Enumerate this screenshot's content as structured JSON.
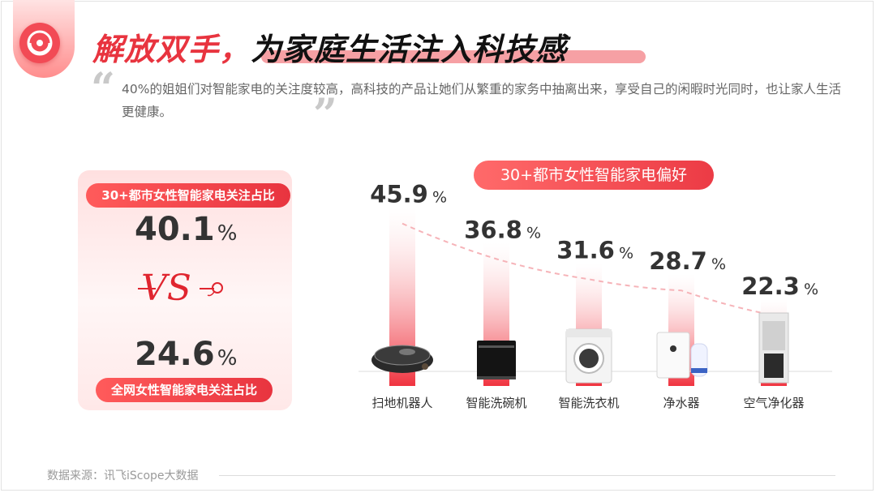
{
  "title": {
    "part1": "解放双手，",
    "part2": "为家庭生活注入科技感"
  },
  "quote": {
    "text": "40%的姐姐们对智能家电的关注度较高，高科技的产品让她们从繁重的家务中抽离出来，享受自己的闲暇时光同时，也让家人生活更健康。"
  },
  "comparison": {
    "top_label": "30+都市女性智能家电关注占比",
    "top_value": "40.1",
    "vs_text": "VS",
    "bottom_value": "24.6",
    "bottom_label": "全网女性智能家电关注占比",
    "percent_sign": "%"
  },
  "chart_title": "30+都市女性智能家电偏好",
  "chart_data": {
    "type": "bar",
    "title": "30+都市女性智能家电偏好",
    "categories": [
      "扫地机器人",
      "智能洗碗机",
      "智能洗衣机",
      "净水器",
      "空气净化器"
    ],
    "values": [
      45.9,
      36.8,
      31.6,
      28.7,
      22.3
    ],
    "unit": "%",
    "trend_line": "dashed",
    "colors": {
      "bar_top": "#ffffff",
      "bar_bottom": "#f0333f",
      "trend": "#f6b3b8"
    }
  },
  "icons": [
    "sweeping-robot-icon",
    "dishwasher-icon",
    "washing-machine-icon",
    "water-purifier-icon",
    "air-purifier-icon"
  ],
  "footer": {
    "source": "数据来源：讯飞iScope大数据"
  },
  "colors": {
    "accent": "#e8343f",
    "accent_light": "#ff8d8d"
  }
}
